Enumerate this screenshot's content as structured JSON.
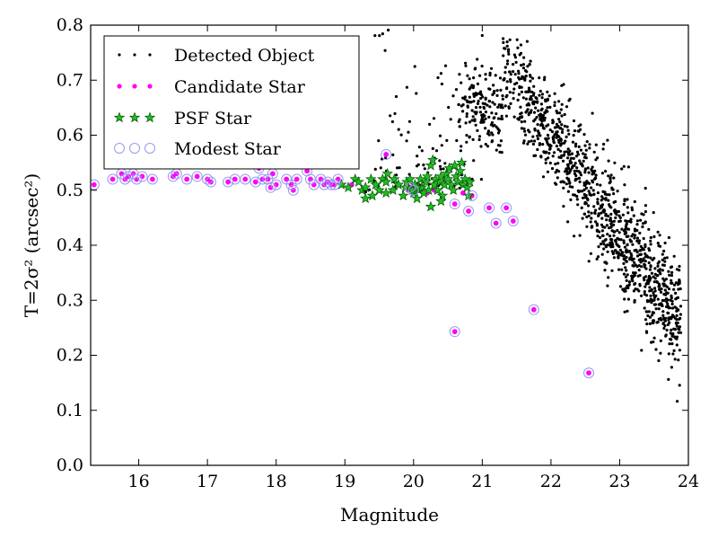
{
  "chart_data": {
    "type": "scatter",
    "xlabel": "Magnitude",
    "ylabel": "T=2σ² (arcsec²)",
    "xlim": [
      15.3,
      24.0
    ],
    "ylim": [
      0.0,
      0.8
    ],
    "xticks": [
      16,
      17,
      18,
      19,
      20,
      21,
      22,
      23,
      24
    ],
    "yticks": [
      0.0,
      0.1,
      0.2,
      0.3,
      0.4,
      0.5,
      0.6,
      0.7,
      0.8
    ],
    "xtick_labels": [
      "16",
      "17",
      "18",
      "19",
      "20",
      "21",
      "22",
      "23",
      "24"
    ],
    "ytick_labels": [
      "0.0",
      "0.1",
      "0.2",
      "0.3",
      "0.4",
      "0.5",
      "0.6",
      "0.7",
      "0.8"
    ],
    "legend_position": "top-left",
    "grid": false,
    "series": [
      {
        "name": "Detected Object",
        "marker": "dot",
        "color": "#000000",
        "points": []
      },
      {
        "name": "Candidate Star",
        "marker": "circle",
        "color": "#ff00ff",
        "points": [
          [
            15.35,
            0.51
          ],
          [
            15.62,
            0.52
          ],
          [
            15.75,
            0.53
          ],
          [
            15.8,
            0.52
          ],
          [
            15.85,
            0.525
          ],
          [
            15.92,
            0.53
          ],
          [
            15.97,
            0.52
          ],
          [
            16.05,
            0.525
          ],
          [
            16.2,
            0.52
          ],
          [
            16.5,
            0.525
          ],
          [
            16.55,
            0.53
          ],
          [
            16.7,
            0.52
          ],
          [
            16.85,
            0.525
          ],
          [
            17.0,
            0.52
          ],
          [
            17.05,
            0.515
          ],
          [
            17.3,
            0.515
          ],
          [
            17.4,
            0.52
          ],
          [
            17.55,
            0.52
          ],
          [
            17.7,
            0.515
          ],
          [
            17.75,
            0.54
          ],
          [
            17.8,
            0.52
          ],
          [
            17.88,
            0.52
          ],
          [
            17.92,
            0.505
          ],
          [
            17.95,
            0.53
          ],
          [
            18.0,
            0.51
          ],
          [
            18.15,
            0.52
          ],
          [
            18.22,
            0.51
          ],
          [
            18.25,
            0.5
          ],
          [
            18.3,
            0.52
          ],
          [
            18.45,
            0.535
          ],
          [
            18.5,
            0.52
          ],
          [
            18.55,
            0.51
          ],
          [
            18.65,
            0.52
          ],
          [
            18.7,
            0.51
          ],
          [
            18.75,
            0.515
          ],
          [
            18.8,
            0.51
          ],
          [
            18.85,
            0.51
          ],
          [
            18.9,
            0.52
          ],
          [
            19.1,
            0.51
          ],
          [
            19.6,
            0.565
          ],
          [
            19.92,
            0.5
          ],
          [
            19.95,
            0.505
          ],
          [
            20.0,
            0.5
          ],
          [
            20.05,
            0.51
          ],
          [
            20.1,
            0.5
          ],
          [
            20.2,
            0.495
          ],
          [
            20.3,
            0.5
          ],
          [
            20.6,
            0.475
          ],
          [
            20.8,
            0.462
          ],
          [
            20.6,
            0.243
          ],
          [
            21.75,
            0.283
          ],
          [
            22.55,
            0.168
          ],
          [
            21.1,
            0.468
          ],
          [
            21.2,
            0.44
          ],
          [
            21.35,
            0.468
          ],
          [
            21.45,
            0.444
          ],
          [
            20.72,
            0.495
          ],
          [
            20.85,
            0.49
          ]
        ]
      },
      {
        "name": "PSF Star",
        "marker": "star",
        "color": "#008000",
        "points": [
          [
            18.95,
            0.51
          ],
          [
            19.05,
            0.505
          ],
          [
            19.15,
            0.52
          ],
          [
            19.2,
            0.515
          ],
          [
            19.25,
            0.5
          ],
          [
            19.3,
            0.505
          ],
          [
            19.38,
            0.52
          ],
          [
            19.4,
            0.49
          ],
          [
            19.45,
            0.51
          ],
          [
            19.5,
            0.5
          ],
          [
            19.55,
            0.52
          ],
          [
            19.6,
            0.515
          ],
          [
            19.62,
            0.53
          ],
          [
            19.7,
            0.5
          ],
          [
            19.72,
            0.52
          ],
          [
            19.78,
            0.51
          ],
          [
            19.85,
            0.49
          ],
          [
            19.88,
            0.505
          ],
          [
            19.9,
            0.515
          ],
          [
            19.95,
            0.52
          ],
          [
            20.0,
            0.495
          ],
          [
            20.02,
            0.51
          ],
          [
            20.05,
            0.485
          ],
          [
            20.08,
            0.5
          ],
          [
            20.1,
            0.52
          ],
          [
            20.12,
            0.505
          ],
          [
            20.15,
            0.495
          ],
          [
            20.18,
            0.515
          ],
          [
            20.2,
            0.525
          ],
          [
            20.22,
            0.5
          ],
          [
            20.25,
            0.545
          ],
          [
            20.28,
            0.555
          ],
          [
            20.3,
            0.51
          ],
          [
            20.32,
            0.52
          ],
          [
            20.35,
            0.5
          ],
          [
            20.38,
            0.515
          ],
          [
            20.4,
            0.525
          ],
          [
            20.42,
            0.49
          ],
          [
            20.45,
            0.51
          ],
          [
            20.48,
            0.53
          ],
          [
            20.5,
            0.52
          ],
          [
            20.52,
            0.54
          ],
          [
            20.55,
            0.51
          ],
          [
            20.58,
            0.5
          ],
          [
            20.6,
            0.545
          ],
          [
            20.62,
            0.525
          ],
          [
            20.65,
            0.515
          ],
          [
            20.68,
            0.535
          ],
          [
            20.7,
            0.55
          ],
          [
            20.72,
            0.51
          ],
          [
            20.75,
            0.52
          ],
          [
            20.78,
            0.505
          ],
          [
            20.8,
            0.49
          ],
          [
            20.82,
            0.515
          ],
          [
            20.25,
            0.47
          ],
          [
            20.4,
            0.48
          ],
          [
            19.98,
            0.5
          ],
          [
            20.05,
            0.505
          ],
          [
            19.6,
            0.495
          ],
          [
            19.3,
            0.485
          ]
        ]
      },
      {
        "name": "Modest Star",
        "marker": "open-circle",
        "color": "#9999ee",
        "points": [
          [
            15.35,
            0.51
          ],
          [
            15.62,
            0.52
          ],
          [
            15.75,
            0.53
          ],
          [
            15.8,
            0.52
          ],
          [
            15.85,
            0.525
          ],
          [
            15.92,
            0.53
          ],
          [
            15.97,
            0.52
          ],
          [
            16.05,
            0.525
          ],
          [
            16.2,
            0.52
          ],
          [
            16.5,
            0.525
          ],
          [
            16.55,
            0.53
          ],
          [
            16.7,
            0.52
          ],
          [
            16.85,
            0.525
          ],
          [
            17.0,
            0.52
          ],
          [
            17.05,
            0.515
          ],
          [
            17.3,
            0.515
          ],
          [
            17.4,
            0.52
          ],
          [
            17.55,
            0.52
          ],
          [
            17.7,
            0.515
          ],
          [
            17.75,
            0.54
          ],
          [
            17.8,
            0.52
          ],
          [
            17.88,
            0.52
          ],
          [
            17.92,
            0.505
          ],
          [
            17.95,
            0.53
          ],
          [
            18.0,
            0.51
          ],
          [
            18.15,
            0.52
          ],
          [
            18.22,
            0.51
          ],
          [
            18.25,
            0.5
          ],
          [
            18.3,
            0.52
          ],
          [
            18.45,
            0.535
          ],
          [
            18.5,
            0.52
          ],
          [
            18.55,
            0.51
          ],
          [
            18.65,
            0.52
          ],
          [
            18.7,
            0.51
          ],
          [
            18.75,
            0.515
          ],
          [
            18.8,
            0.51
          ],
          [
            18.85,
            0.51
          ],
          [
            18.9,
            0.52
          ],
          [
            19.6,
            0.565
          ],
          [
            19.95,
            0.505
          ],
          [
            20.0,
            0.5
          ],
          [
            20.6,
            0.475
          ],
          [
            20.8,
            0.462
          ],
          [
            20.6,
            0.243
          ],
          [
            21.75,
            0.283
          ],
          [
            22.55,
            0.168
          ],
          [
            21.1,
            0.468
          ],
          [
            21.2,
            0.44
          ],
          [
            21.35,
            0.468
          ],
          [
            21.45,
            0.444
          ],
          [
            20.85,
            0.49
          ]
        ]
      }
    ]
  }
}
